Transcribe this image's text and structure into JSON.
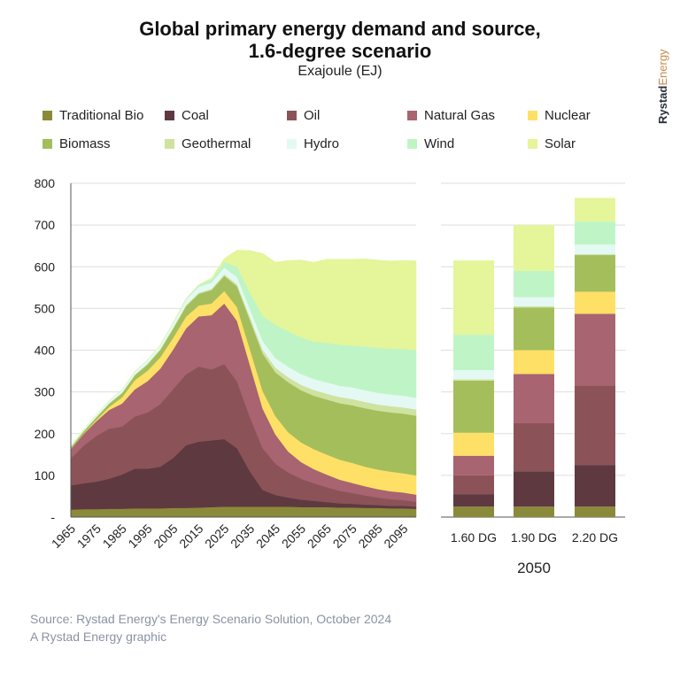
{
  "header": {
    "title_line1": "Global primary energy demand and source,",
    "title_line2": "1.6-degree scenario",
    "subtitle": "Exajoule (EJ)"
  },
  "brand": {
    "part1": "Rystad",
    "part2": "Energy"
  },
  "footer": {
    "source": "Source: Rystad Energy's Energy Scenario Solution, October 2024",
    "credit": "A Rystad Energy graphic"
  },
  "chart_data": [
    {
      "type": "area",
      "stacked": true,
      "title": "",
      "xlabel": "",
      "ylabel": "",
      "ylim": [
        0,
        800
      ],
      "y_ticks": [
        0,
        100,
        200,
        300,
        400,
        500,
        600,
        700,
        800
      ],
      "y_tick_labels": [
        "-",
        "100",
        "200",
        "300",
        "400",
        "500",
        "600",
        "700",
        "800"
      ],
      "x_tick_labels": [
        "1965",
        "1975",
        "1985",
        "1995",
        "2005",
        "2015",
        "2025",
        "2035",
        "2045",
        "2055",
        "2065",
        "2075",
        "2085",
        "2095"
      ],
      "x": [
        1965,
        1970,
        1975,
        1980,
        1985,
        1990,
        1995,
        2000,
        2005,
        2010,
        2015,
        2020,
        2025,
        2030,
        2035,
        2040,
        2045,
        2050,
        2055,
        2060,
        2065,
        2070,
        2075,
        2080,
        2085,
        2090,
        2095,
        2100
      ],
      "grid": "horizontal",
      "legend_position": "top",
      "series": [
        {
          "name": "Traditional Bio",
          "color": "#8b8a3a",
          "values": [
            18,
            19,
            19,
            20,
            20,
            21,
            21,
            21,
            22,
            22,
            23,
            24,
            25,
            25,
            25,
            25,
            25,
            25,
            24,
            24,
            24,
            23,
            23,
            22,
            22,
            21,
            21,
            20
          ]
        },
        {
          "name": "Coal",
          "color": "#5e3a40",
          "values": [
            58,
            62,
            66,
            72,
            82,
            95,
            95,
            100,
            120,
            150,
            158,
            160,
            162,
            140,
            85,
            40,
            28,
            22,
            18,
            15,
            12,
            10,
            9,
            8,
            7,
            6,
            6,
            5
          ]
        },
        {
          "name": "Oil",
          "color": "#8b5358",
          "values": [
            65,
            90,
            110,
            120,
            115,
            125,
            135,
            150,
            165,
            170,
            180,
            170,
            180,
            160,
            130,
            100,
            75,
            60,
            50,
            42,
            36,
            30,
            26,
            22,
            18,
            16,
            14,
            12
          ]
        },
        {
          "name": "Natural Gas",
          "color": "#a86470",
          "values": [
            22,
            28,
            35,
            45,
            55,
            65,
            75,
            85,
            95,
            110,
            120,
            130,
            145,
            145,
            125,
            95,
            70,
            50,
            40,
            34,
            30,
            27,
            24,
            22,
            20,
            19,
            18,
            17
          ]
        },
        {
          "name": "Nuclear",
          "color": "#ffe066",
          "values": [
            0,
            1,
            3,
            7,
            15,
            22,
            25,
            27,
            28,
            28,
            26,
            28,
            30,
            33,
            38,
            42,
            44,
            46,
            47,
            48,
            48,
            48,
            48,
            47,
            47,
            47,
            46,
            46
          ]
        },
        {
          "name": "Biomass",
          "color": "#a4be5c",
          "values": [
            5,
            6,
            7,
            8,
            10,
            12,
            15,
            18,
            22,
            25,
            28,
            32,
            36,
            50,
            70,
            90,
            105,
            120,
            125,
            128,
            132,
            135,
            138,
            140,
            141,
            142,
            143,
            143
          ]
        },
        {
          "name": "Geothermal",
          "color": "#cfe2a0",
          "values": [
            0,
            0,
            0,
            1,
            1,
            1,
            2,
            2,
            2,
            3,
            3,
            3,
            4,
            5,
            7,
            9,
            11,
            12,
            13,
            14,
            14,
            15,
            15,
            15,
            15,
            15,
            15,
            15
          ]
        },
        {
          "name": "Hydro",
          "color": "#e4f9f4",
          "values": [
            3,
            4,
            5,
            6,
            7,
            8,
            9,
            10,
            11,
            13,
            14,
            15,
            16,
            17,
            19,
            21,
            23,
            25,
            26,
            26,
            27,
            27,
            28,
            28,
            28,
            28,
            28,
            28
          ]
        },
        {
          "name": "Wind",
          "color": "#bff5c6",
          "values": [
            0,
            0,
            0,
            0,
            0,
            0,
            0,
            0,
            1,
            2,
            4,
            8,
            14,
            25,
            40,
            60,
            80,
            85,
            88,
            90,
            95,
            98,
            100,
            105,
            108,
            110,
            112,
            115
          ]
        },
        {
          "name": "Solar",
          "color": "#e4f59a",
          "values": [
            0,
            0,
            0,
            0,
            0,
            0,
            0,
            0,
            0,
            0,
            1,
            3,
            8,
            40,
            100,
            150,
            150,
            170,
            185,
            190,
            200,
            205,
            207,
            210,
            210,
            210,
            212,
            213
          ]
        }
      ]
    },
    {
      "type": "bar",
      "stacked": true,
      "categories": [
        "1.60 DG",
        "1.90 DG",
        "2.20 DG"
      ],
      "group_label": "2050",
      "ylim": [
        0,
        800
      ],
      "series": [
        {
          "name": "Traditional Bio",
          "color": "#8b8a3a",
          "values": [
            25,
            25,
            25
          ]
        },
        {
          "name": "Coal",
          "color": "#5e3a40",
          "values": [
            30,
            85,
            100
          ]
        },
        {
          "name": "Oil",
          "color": "#8b5358",
          "values": [
            45,
            115,
            190
          ]
        },
        {
          "name": "Natural Gas",
          "color": "#a86470",
          "values": [
            47,
            118,
            172
          ]
        },
        {
          "name": "Nuclear",
          "color": "#ffe066",
          "values": [
            55,
            57,
            53
          ]
        },
        {
          "name": "Biomass",
          "color": "#a4be5c",
          "values": [
            125,
            102,
            88
          ]
        },
        {
          "name": "Geothermal",
          "color": "#cfe2a0",
          "values": [
            3,
            3,
            2
          ]
        },
        {
          "name": "Hydro",
          "color": "#e4f9f4",
          "values": [
            22,
            22,
            23
          ]
        },
        {
          "name": "Wind",
          "color": "#bff5c6",
          "values": [
            85,
            63,
            55
          ]
        },
        {
          "name": "Solar",
          "color": "#e4f59a",
          "values": [
            178,
            110,
            57
          ]
        }
      ]
    }
  ]
}
